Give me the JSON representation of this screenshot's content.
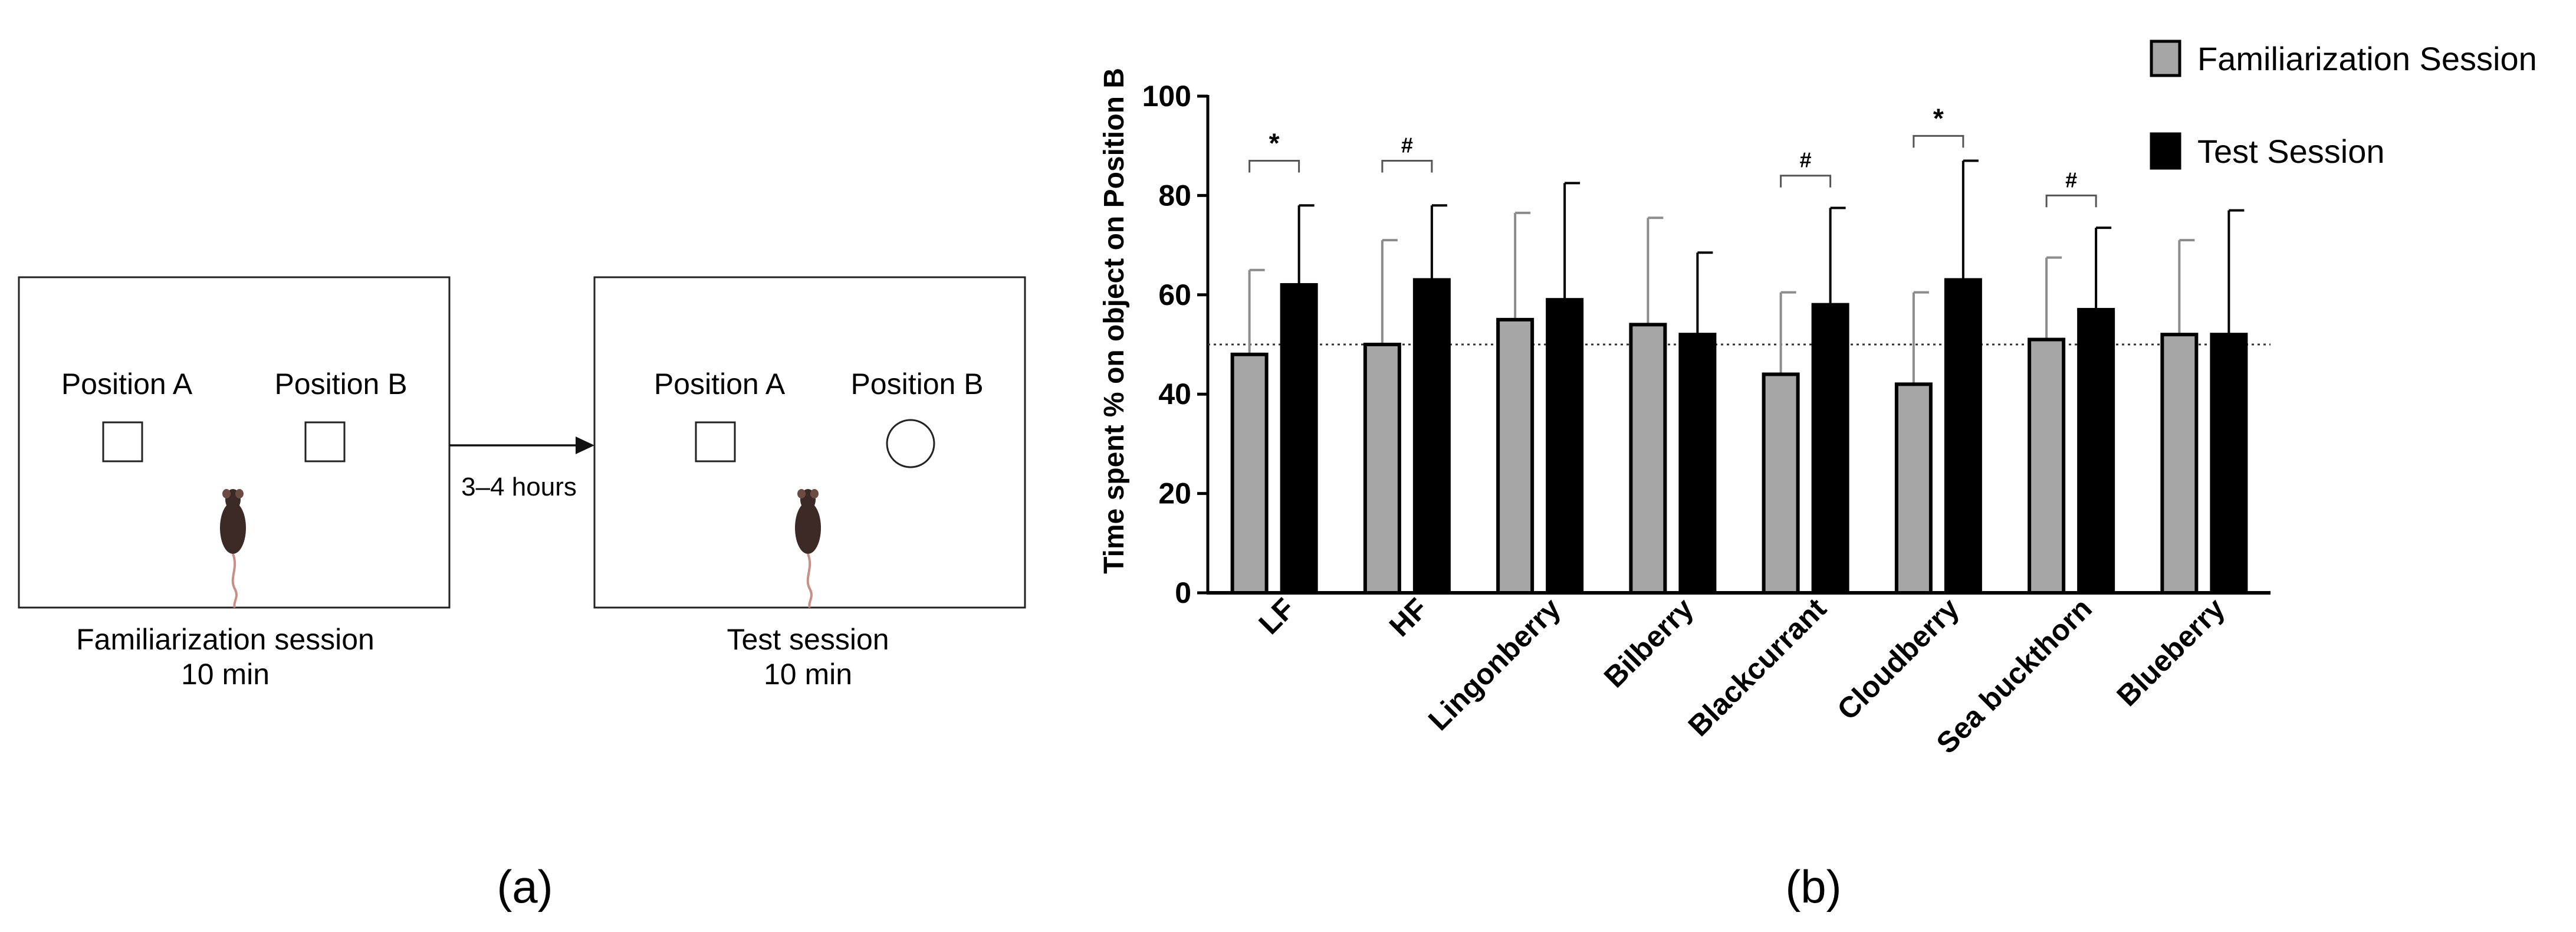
{
  "panel_a": {
    "label": "(a)",
    "left_box": {
      "pos_a": "Position A",
      "pos_b": "Position B",
      "caption_line1": "Familiarization session",
      "caption_line2": "10 min"
    },
    "right_box": {
      "pos_a": "Position A",
      "pos_b": "Position B",
      "caption_line1": "Test session",
      "caption_line2": "10 min"
    },
    "arrow_label": "3–4 hours"
  },
  "panel_b": {
    "label": "(b)"
  },
  "chart_data": {
    "type": "bar",
    "ylabel": "Time spent % on object on Position B",
    "xlabel": "",
    "ylim": [
      0,
      100
    ],
    "yticks": [
      0,
      20,
      40,
      60,
      80,
      100
    ],
    "reference_line": 50,
    "categories": [
      "LF",
      "HF",
      "Lingonberry",
      "Bilberry",
      "Blackcurrant",
      "Cloudberry",
      "Sea buckthorn",
      "Blueberry"
    ],
    "series": [
      {
        "name": "Familiarization Session",
        "color": "#a6a6a6",
        "values": [
          48,
          50,
          55,
          54,
          44,
          42,
          51,
          52
        ],
        "errors": [
          17,
          21,
          21.5,
          21.5,
          16.5,
          18.5,
          16.5,
          19
        ]
      },
      {
        "name": "Test Session",
        "color": "#000000",
        "values": [
          62,
          63,
          59,
          52,
          58,
          63,
          57,
          52
        ],
        "errors": [
          16,
          15,
          23.5,
          16.5,
          19.5,
          24,
          16.5,
          25
        ]
      }
    ],
    "significance": [
      {
        "category": "LF",
        "symbol": "*",
        "level": 87
      },
      {
        "category": "HF",
        "symbol": "#",
        "level": 87
      },
      {
        "category": "Blackcurrant",
        "symbol": "#",
        "level": 84
      },
      {
        "category": "Cloudberry",
        "symbol": "*",
        "level": 92
      },
      {
        "category": "Sea buckthorn",
        "symbol": "#",
        "level": 80
      }
    ],
    "legend": {
      "placement": "top-right",
      "entries": [
        "Familiarization Session",
        "Test Session"
      ]
    }
  }
}
